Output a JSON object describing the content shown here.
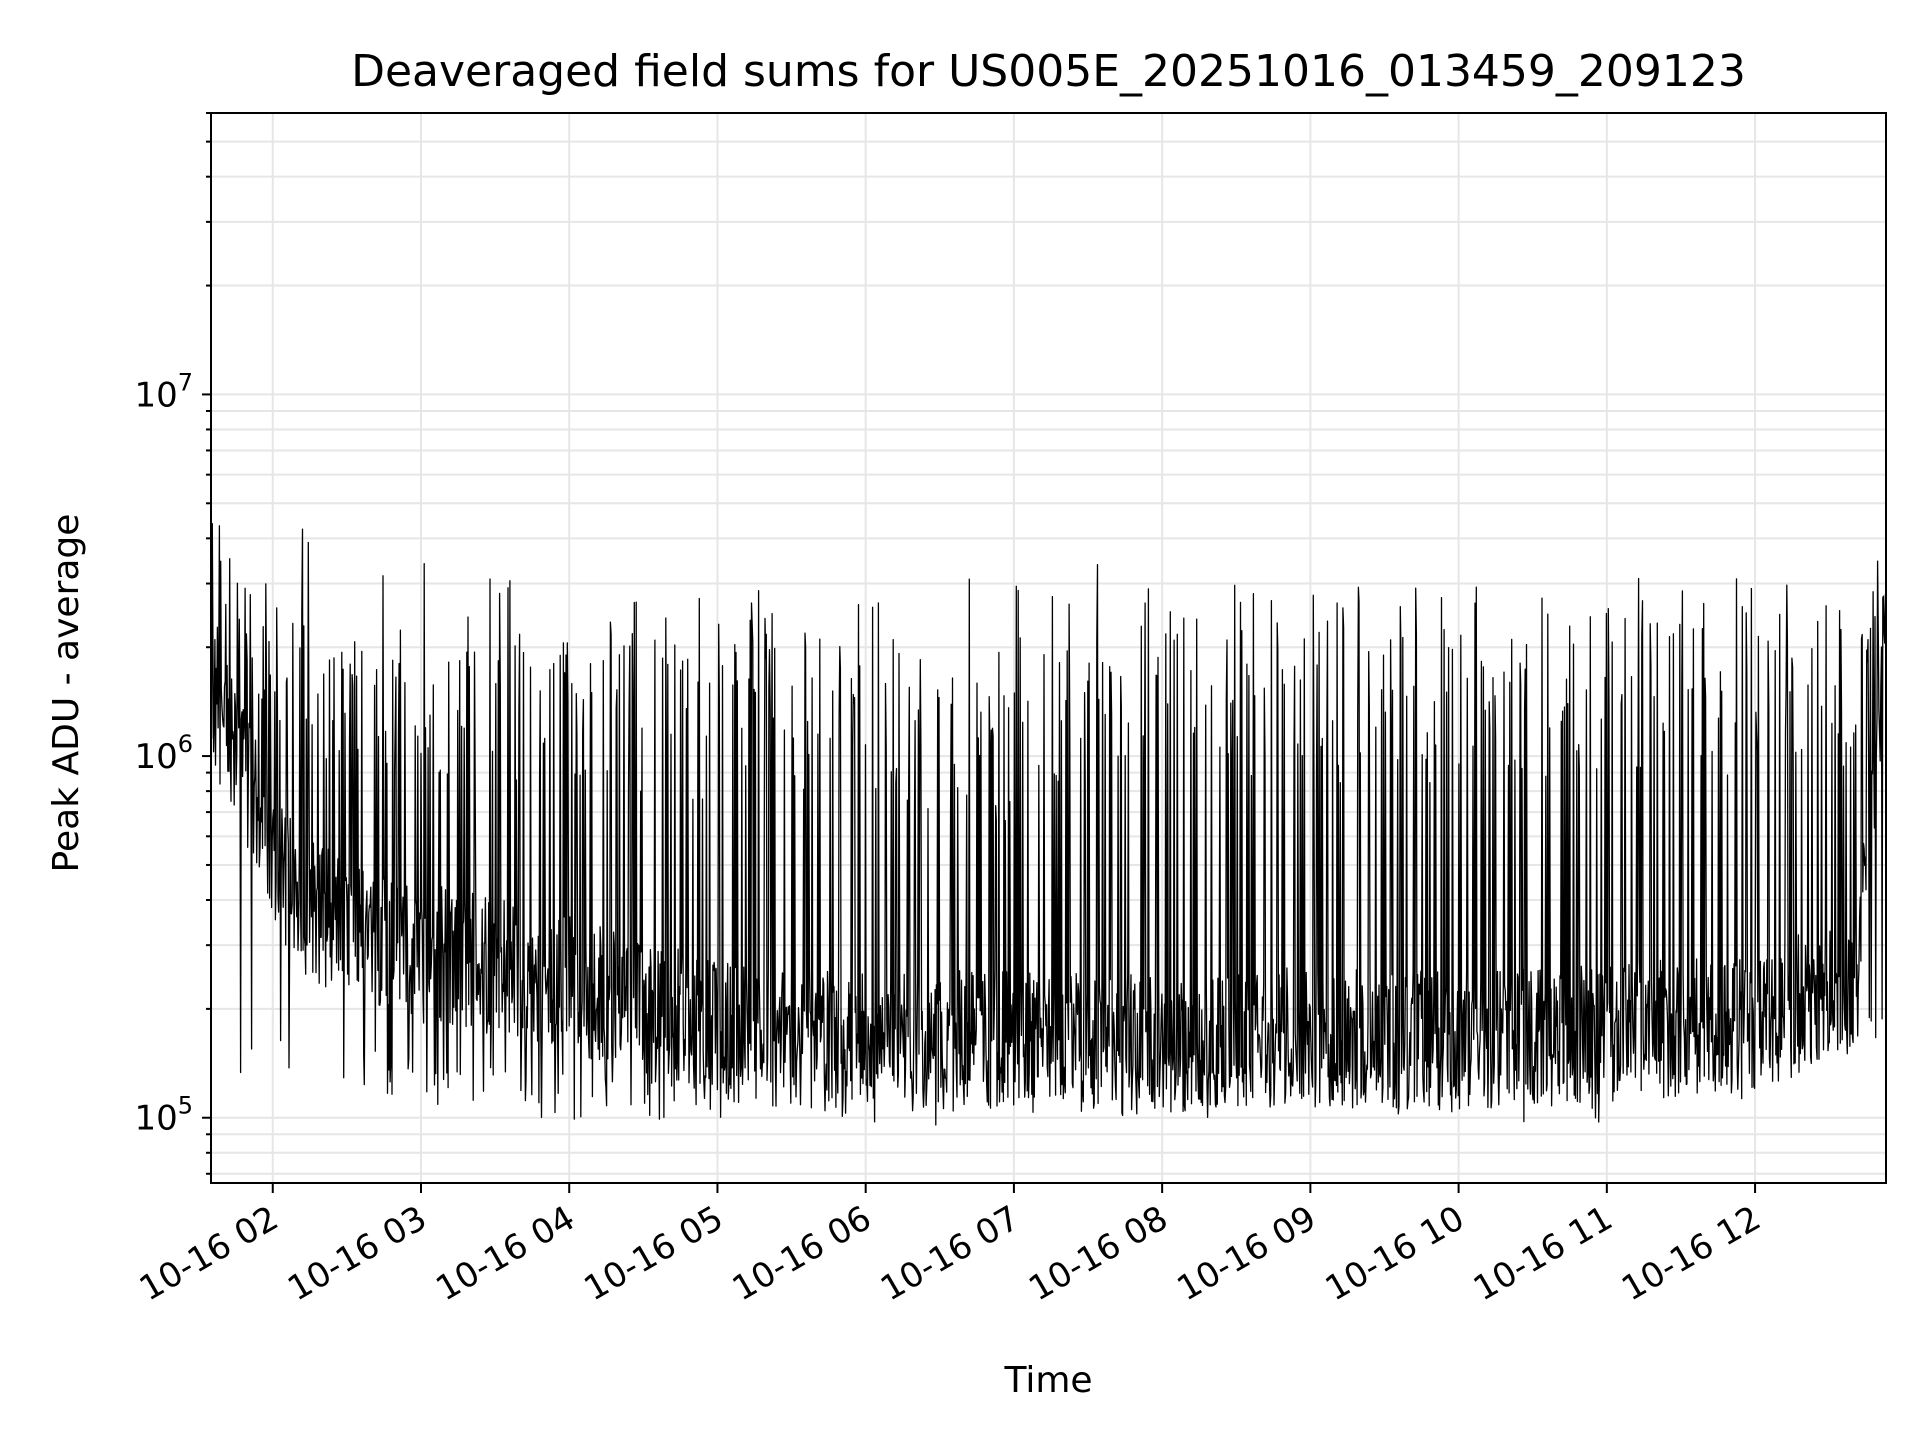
{
  "chart_data": {
    "type": "line",
    "title": "Deaveraged field sums for US005E_20251016_013459_209123",
    "xlabel": "Time",
    "ylabel": "Peak ADU - average",
    "x_scale": "time",
    "y_scale": "log",
    "xlim": [
      "2025-10-16 01:35",
      "2025-10-16 12:53"
    ],
    "ylim": [
      66000,
      60000000
    ],
    "x_ticks": [
      "10-16 02",
      "10-16 03",
      "10-16 04",
      "10-16 05",
      "10-16 06",
      "10-16 07",
      "10-16 08",
      "10-16 09",
      "10-16 10",
      "10-16 11",
      "10-16 12"
    ],
    "y_ticks": [
      {
        "value": 100000,
        "base": "10",
        "exp": "5"
      },
      {
        "value": 1000000,
        "base": "10",
        "exp": "6"
      },
      {
        "value": 10000000,
        "base": "10",
        "exp": "7"
      }
    ],
    "grid": true,
    "series": [
      {
        "name": "",
        "color": "#000000",
        "segments": [
          {
            "start": "01:35",
            "end": "01:45",
            "low": 600000,
            "high": 2800000,
            "spike": 4500000
          },
          {
            "start": "01:45",
            "end": "02:15",
            "low": 120000,
            "high": 2500000,
            "spike": 4500000
          },
          {
            "start": "02:15",
            "end": "03:00",
            "low": 110000,
            "high": 2000000,
            "spike": 3500000
          },
          {
            "start": "03:00",
            "end": "04:00",
            "low": 100000,
            "high": 2200000,
            "spike": 3700000
          },
          {
            "start": "04:00",
            "end": "05:00",
            "low": 95000,
            "high": 2200000,
            "spike": 3000000
          },
          {
            "start": "05:00",
            "end": "06:00",
            "low": 100000,
            "high": 2500000,
            "spike": 3200000
          },
          {
            "start": "06:00",
            "end": "07:00",
            "low": 95000,
            "high": 2000000,
            "spike": 3200000
          },
          {
            "start": "07:00",
            "end": "08:00",
            "low": 110000,
            "high": 3000000,
            "spike": 3500000
          },
          {
            "start": "08:00",
            "end": "09:00",
            "low": 100000,
            "high": 3000000,
            "spike": 3300000
          },
          {
            "start": "09:00",
            "end": "10:00",
            "low": 100000,
            "high": 3000000,
            "spike": 3300000
          },
          {
            "start": "10:00",
            "end": "11:00",
            "low": 95000,
            "high": 3000000,
            "spike": 3200000
          },
          {
            "start": "11:00",
            "end": "12:00",
            "low": 110000,
            "high": 3000000,
            "spike": 3200000
          },
          {
            "start": "12:00",
            "end": "12:53",
            "low": 140000,
            "high": 2800000,
            "spike": 4100000
          }
        ],
        "baseline": [
          {
            "time": "01:35",
            "value": 1500000
          },
          {
            "time": "01:50",
            "value": 900000
          },
          {
            "time": "02:10",
            "value": 400000
          },
          {
            "time": "03:00",
            "value": 300000
          },
          {
            "time": "04:00",
            "value": 250000
          },
          {
            "time": "05:00",
            "value": 180000
          },
          {
            "time": "06:00",
            "value": 170000
          },
          {
            "time": "07:00",
            "value": 170000
          },
          {
            "time": "08:00",
            "value": 165000
          },
          {
            "time": "09:00",
            "value": 175000
          },
          {
            "time": "10:00",
            "value": 170000
          },
          {
            "time": "11:00",
            "value": 180000
          },
          {
            "time": "12:00",
            "value": 190000
          },
          {
            "time": "12:40",
            "value": 250000
          },
          {
            "time": "12:53",
            "value": 2300000
          }
        ]
      }
    ]
  }
}
